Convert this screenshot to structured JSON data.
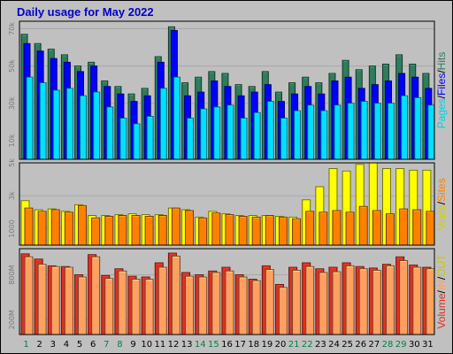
{
  "title": "Daily usage for May 2022",
  "colors": {
    "hits": "#2e7d5b",
    "files": "#0000ff",
    "pages": "#00e0ff",
    "visits": "#ffff00",
    "sites": "#ff8000",
    "volume": "#e03020",
    "in": "#ffa060",
    "weekday_label": "#000000",
    "weekend_label": "#008040"
  },
  "chart_data": [
    {
      "type": "bar",
      "panel": "hits-files-pages",
      "ylim": [
        0,
        74000
      ],
      "ticks": [
        {
          "value": 10000,
          "label": "10k"
        },
        {
          "value": 30000,
          "label": "30k"
        },
        {
          "value": 50000,
          "label": "50k"
        },
        {
          "value": 70000,
          "label": "70k"
        }
      ],
      "side_labels": [
        "Pages",
        "/",
        "Files",
        "/",
        "Hits"
      ],
      "side_colors": [
        "#00d0e0",
        "#000000",
        "#0000ff",
        "#000000",
        "#2e7d5b"
      ],
      "categories": [
        1,
        2,
        3,
        4,
        5,
        6,
        7,
        8,
        9,
        10,
        11,
        12,
        13,
        14,
        15,
        16,
        17,
        18,
        19,
        20,
        21,
        22,
        23,
        24,
        25,
        26,
        27,
        28,
        29,
        30,
        31
      ],
      "series": [
        {
          "name": "Hits",
          "color_key": "hits",
          "values": [
            67000,
            62000,
            59000,
            56000,
            50000,
            52000,
            42000,
            39000,
            35000,
            38000,
            55000,
            71000,
            41000,
            44000,
            47000,
            46000,
            40000,
            39000,
            47000,
            36000,
            41000,
            44000,
            41000,
            46000,
            53000,
            48000,
            50000,
            51000,
            56000,
            51000,
            46000
          ]
        },
        {
          "name": "Files",
          "color_key": "files",
          "values": [
            62000,
            58000,
            54000,
            52000,
            47000,
            50000,
            39000,
            35000,
            31000,
            34000,
            52000,
            69000,
            34000,
            36000,
            42000,
            39000,
            34000,
            36000,
            40000,
            31000,
            35000,
            39000,
            35000,
            42000,
            44000,
            38000,
            40000,
            42000,
            46000,
            44000,
            38000
          ]
        },
        {
          "name": "Pages",
          "color_key": "pages",
          "values": [
            44000,
            41000,
            37000,
            38000,
            34000,
            36000,
            28000,
            22000,
            19000,
            23000,
            38000,
            44000,
            22000,
            27000,
            28000,
            29000,
            22000,
            25000,
            31000,
            22000,
            26000,
            29000,
            26000,
            29000,
            30000,
            31000,
            30000,
            30000,
            34000,
            33000,
            29000
          ]
        }
      ]
    },
    {
      "type": "bar",
      "panel": "visits-sites",
      "ylim": [
        0,
        5000
      ],
      "ticks": [
        {
          "value": 1000,
          "label": "1000"
        },
        {
          "value": 3000,
          "label": "3k"
        },
        {
          "value": 5000,
          "label": "5k"
        }
      ],
      "side_labels": [
        "Visits",
        "/",
        "Sites"
      ],
      "side_colors": [
        "#d0d000",
        "#000000",
        "#ff8000"
      ],
      "categories": [
        1,
        2,
        3,
        4,
        5,
        6,
        7,
        8,
        9,
        10,
        11,
        12,
        13,
        14,
        15,
        16,
        17,
        18,
        19,
        20,
        21,
        22,
        23,
        24,
        25,
        26,
        27,
        28,
        29,
        30,
        31
      ],
      "series": [
        {
          "name": "Visits",
          "color_key": "visits",
          "values": [
            2700,
            2150,
            2200,
            2050,
            2450,
            1800,
            1800,
            1850,
            1900,
            1850,
            1850,
            2250,
            2150,
            1700,
            2050,
            1900,
            1800,
            1800,
            1800,
            1750,
            1700,
            2750,
            3550,
            4650,
            4500,
            4900,
            5000,
            4650,
            4650,
            4550,
            4550
          ]
        },
        {
          "name": "Sites",
          "color_key": "sites",
          "values": [
            2250,
            2050,
            2150,
            2000,
            2400,
            1650,
            1750,
            1800,
            1800,
            1750,
            1800,
            2250,
            2100,
            1650,
            1950,
            1850,
            1750,
            1700,
            1800,
            1700,
            1600,
            2050,
            2000,
            2100,
            2000,
            2350,
            2100,
            1900,
            2200,
            2150,
            2050
          ]
        }
      ]
    },
    {
      "type": "bar",
      "panel": "volume-in-out",
      "ylim": [
        0,
        1150
      ],
      "ticks": [
        {
          "value": 200,
          "label": "200M"
        },
        {
          "value": 800,
          "label": "800M"
        }
      ],
      "side_labels": [
        "Volume",
        "/",
        "IN",
        "/",
        "OUT"
      ],
      "side_colors": [
        "#e03020",
        "#000000",
        "#ffa060",
        "#000000",
        "#c8c800"
      ],
      "categories": [
        1,
        2,
        3,
        4,
        5,
        6,
        7,
        8,
        9,
        10,
        11,
        12,
        13,
        14,
        15,
        16,
        17,
        18,
        19,
        20,
        21,
        22,
        23,
        24,
        25,
        26,
        27,
        28,
        29,
        30,
        31
      ],
      "series": [
        {
          "name": "Volume",
          "color_key": "volume",
          "values": [
            1080,
            1010,
            920,
            910,
            800,
            1070,
            790,
            880,
            780,
            770,
            960,
            1090,
            830,
            800,
            850,
            900,
            800,
            740,
            920,
            670,
            900,
            960,
            880,
            900,
            960,
            910,
            890,
            940,
            1040,
            930,
            900
          ]
        },
        {
          "name": "IN",
          "color_key": "in",
          "values": [
            1040,
            940,
            910,
            900,
            770,
            1040,
            750,
            850,
            740,
            740,
            900,
            1050,
            780,
            770,
            830,
            850,
            770,
            720,
            870,
            630,
            860,
            910,
            830,
            840,
            920,
            880,
            860,
            920,
            990,
            900,
            880
          ]
        }
      ]
    }
  ],
  "x_axis": {
    "days": [
      "1",
      "2",
      "3",
      "4",
      "5",
      "6",
      "7",
      "8",
      "9",
      "10",
      "11",
      "12",
      "13",
      "14",
      "15",
      "16",
      "17",
      "18",
      "19",
      "20",
      "21",
      "22",
      "23",
      "24",
      "25",
      "26",
      "27",
      "28",
      "29",
      "30",
      "31"
    ],
    "weekend_days": [
      1,
      7,
      8,
      14,
      15,
      21,
      22,
      28,
      29
    ]
  }
}
